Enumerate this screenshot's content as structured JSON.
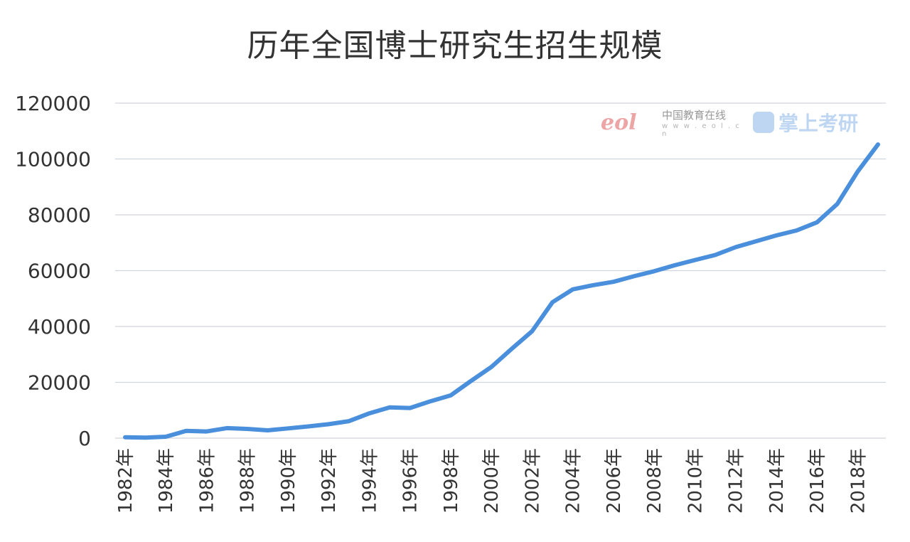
{
  "chart_data": {
    "type": "line",
    "title": "历年全国博士研究生招生规模",
    "xlabel": "",
    "ylabel": "",
    "ylim": [
      0,
      120000
    ],
    "yticks": [
      "0",
      "20000",
      "40000",
      "60000",
      "80000",
      "100000",
      "120000"
    ],
    "ytick_values": [
      0,
      20000,
      40000,
      60000,
      80000,
      100000,
      120000
    ],
    "xtick_labels": [
      "1982年",
      "1984年",
      "1986年",
      "1988年",
      "1990年",
      "1992年",
      "1994年",
      "1996年",
      "1998年",
      "2000年",
      "2002年",
      "2004年",
      "2006年",
      "2008年",
      "2010年",
      "2012年",
      "2014年",
      "2016年",
      "2018年"
    ],
    "grid": true,
    "series": [
      {
        "name": "博士研究生招生规模",
        "color": "#4a8fdc",
        "x": [
          1982,
          1983,
          1984,
          1985,
          1986,
          1987,
          1988,
          1989,
          1990,
          1991,
          1992,
          1993,
          1994,
          1995,
          1996,
          1997,
          1998,
          1999,
          2000,
          2001,
          2002,
          2003,
          2004,
          2005,
          2006,
          2007,
          2008,
          2009,
          2010,
          2011,
          2012,
          2013,
          2014,
          2015,
          2016,
          2017,
          2018,
          2019
        ],
        "values": [
          300,
          200,
          500,
          2600,
          2400,
          3600,
          3300,
          2800,
          3500,
          4200,
          5000,
          6100,
          8900,
          11000,
          10800,
          13200,
          15300,
          20500,
          25500,
          32000,
          38300,
          48700,
          53300,
          54800,
          56000,
          58000,
          59800,
          61900,
          63800,
          65600,
          68400,
          70500,
          72600,
          74400,
          77300,
          83900,
          95500,
          105200
        ]
      }
    ]
  },
  "watermark": {
    "logo": "eol",
    "cn_name": "中国教育在线",
    "url": "w w w . e o l . c n",
    "brand": "掌上考研"
  }
}
